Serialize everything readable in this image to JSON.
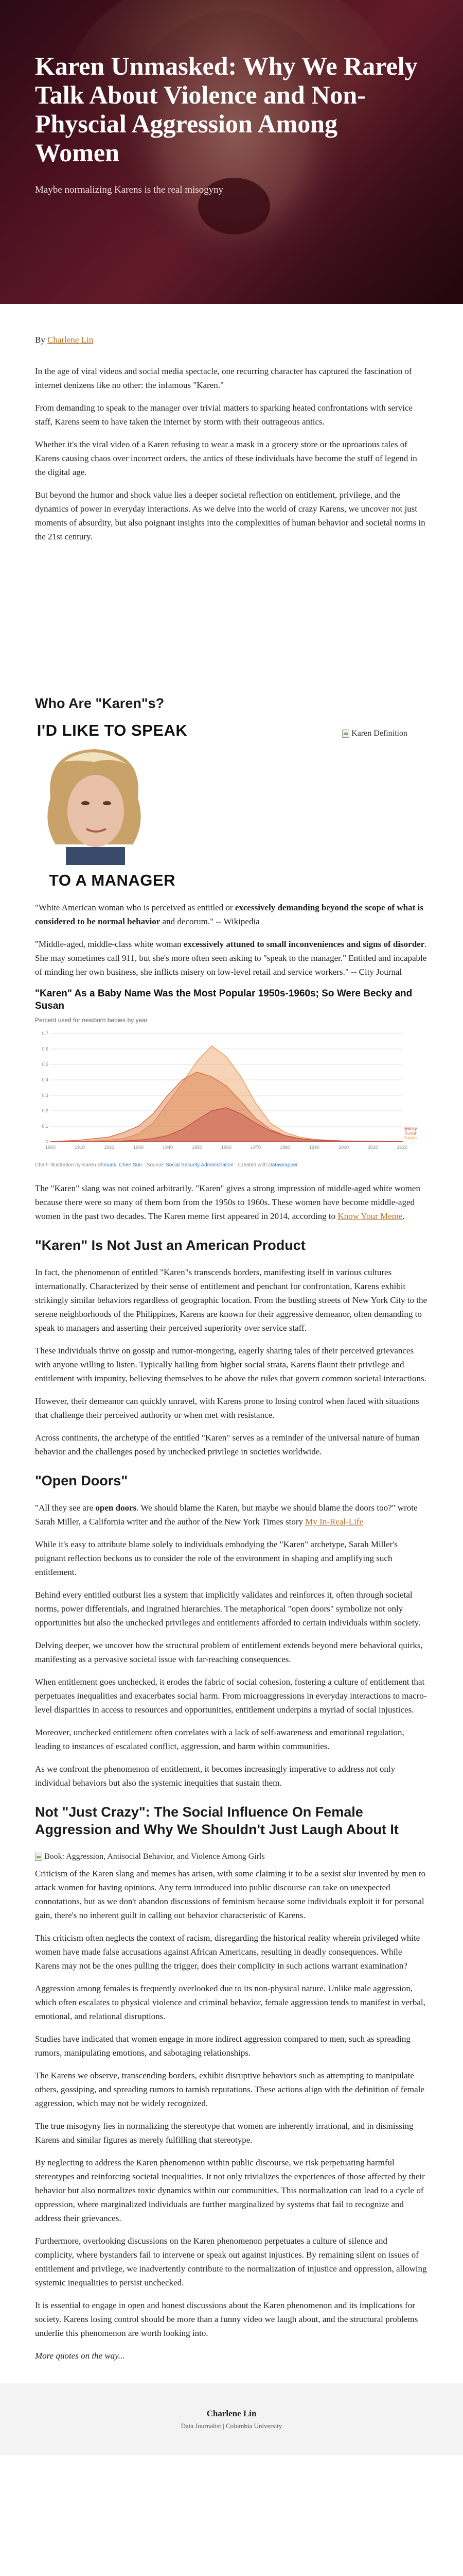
{
  "hero": {
    "title": "Karen Unmasked: Why We Rarely Talk About Violence and Non-Physcial Aggression Among Women",
    "subtitle": "Maybe normalizing Karens is the real misogyny"
  },
  "byline": {
    "prefix": "By ",
    "author": "Charlene Lin"
  },
  "intro": [
    "In the age of viral videos and social media spectacle, one recurring character has captured the fascination of internet denizens like no other: the infamous \"Karen.\"",
    "From demanding to speak to the manager over trivial matters to sparking heated confrontations with service staff, Karens seem to have taken the internet by storm with their outrageous antics.",
    "Whether it's the viral video of a Karen refusing to wear a mask in a grocery store or the uproarious tales of Karens causing chaos over incorrect orders, the antics of these individuals have become the stuff of legend in the digital age.",
    "But beyond the humor and shock value lies a deeper societal reflection on entitlement, privilege, and the dynamics of power in everyday interactions. As we delve into the world of crazy Karens, we uncover not just moments of absurdity, but also poignant insights into the complexities of human behavior and societal norms in the 21st century."
  ],
  "section1": {
    "heading": "Who Are \"Karen\"s?",
    "meme_top": "I'D LIKE TO SPEAK",
    "meme_bottom": "TO A MANAGER",
    "meme_alt": "Karen Definition",
    "quote1_a": "\"White American woman who is perceived as entitled or ",
    "quote1_b": "excessively demanding beyond the scope of what is considered to be normal behavior",
    "quote1_c": " and decorum.\" -- Wikipedia",
    "quote2_a": "\"Middle-aged, middle-class white woman ",
    "quote2_b": "excessively attuned to small inconveniences and signs of disorder",
    "quote2_c": ". She may sometimes call 911, but she's more often seen asking to \"speak to the manager.\" Entitled and incapable of minding her own business, she inflicts misery on low-level retail and service workers.\" -- City Journal",
    "after_chart_a": "The \"Karen\" slang was not coined arbitrarily. \"Karen\" gives a strong impression of middle-aged white women because there were so many of them born from the 1950s to 1960s. These women have become middle-aged women in the past two decades. The Karen meme first appeared in 2014, according to ",
    "after_chart_link": "Know Your Meme",
    "after_chart_b": "."
  },
  "chart_data": {
    "type": "area",
    "title": "\"Karen\" As a Baby Name Was the Most Popular 1950s-1960s; So Were Becky and Susan",
    "subtitle": "Percent used for newborn babies by year",
    "xlim": [
      1900,
      2020
    ],
    "ylim": [
      0,
      0.7
    ],
    "x_ticks": [
      1900,
      1910,
      1920,
      1930,
      1940,
      1950,
      1960,
      1970,
      1980,
      1990,
      2000,
      2010,
      2020
    ],
    "y_ticks": [
      0,
      0.1,
      0.2,
      0.3,
      0.4,
      0.5,
      0.6,
      0.7
    ],
    "grid": true,
    "x": [
      1900,
      1910,
      1920,
      1925,
      1930,
      1935,
      1940,
      1945,
      1950,
      1955,
      1960,
      1965,
      1970,
      1975,
      1980,
      1985,
      1990,
      2000,
      2010,
      2020
    ],
    "series": [
      {
        "name": "Karen",
        "color": "#e8a060",
        "values": [
          0,
          0,
          0.01,
          0.02,
          0.05,
          0.12,
          0.25,
          0.38,
          0.52,
          0.62,
          0.55,
          0.42,
          0.25,
          0.12,
          0.06,
          0.03,
          0.015,
          0.005,
          0.002,
          0.001
        ]
      },
      {
        "name": "Susan",
        "color": "#d9733f",
        "values": [
          0,
          0.01,
          0.03,
          0.06,
          0.1,
          0.18,
          0.3,
          0.4,
          0.45,
          0.42,
          0.36,
          0.26,
          0.15,
          0.08,
          0.04,
          0.02,
          0.01,
          0.004,
          0.002,
          0.001
        ]
      },
      {
        "name": "Becky",
        "color": "#c05050",
        "values": [
          0,
          0,
          0,
          0.005,
          0.01,
          0.02,
          0.04,
          0.08,
          0.14,
          0.2,
          0.22,
          0.18,
          0.12,
          0.07,
          0.04,
          0.02,
          0.01,
          0.004,
          0.002,
          0.001
        ]
      }
    ],
    "source_a": "Chart: Illustration by Karen ",
    "source_link1": "Shmunk, Chen Sun",
    "source_b": " · Source: ",
    "source_link2": "Social Security Administration",
    "source_c": " · Created with ",
    "source_link3": "Datawrapper",
    "colors": {
      "karen": "#e8a060",
      "susan": "#d9733f",
      "becky": "#c05050"
    }
  },
  "section2": {
    "heading": "\"Karen\" Is Not Just an American Product",
    "paragraphs": [
      "In fact, the phenomenon of entitled \"Karen\"s transcends borders, manifesting itself in various cultures internationally. Characterized by their sense of entitlement and penchant for confrontation, Karens exhibit strikingly similar behaviors regardless of geographic location. From the bustling streets of New York City to the serene neighborhoods of the Philippines, Karens are known for their aggressive demeanor, often demanding to speak to managers and asserting their perceived superiority over service staff.",
      "These individuals thrive on gossip and rumor-mongering, eagerly sharing tales of their perceived grievances with anyone willing to listen. Typically hailing from higher social strata, Karens flaunt their privilege and entitlement with impunity, believing themselves to be above the rules that govern common societal interactions.",
      "However, their demeanor can quickly unravel, with Karens prone to losing control when faced with situations that challenge their perceived authority or when met with resistance.",
      "Across continents, the archetype of the entitled \"Karen\" serves as a reminder of the universal nature of human behavior and the challenges posed by unchecked privilege in societies worldwide."
    ]
  },
  "section3": {
    "heading": "\"Open Doors\"",
    "quote_a": "\"All they see are ",
    "quote_b": "open doors",
    "quote_c": ". We should blame the Karen, but maybe we should blame the doors too?\" wrote Sarah Miller, a California writer and the author of the New York Times story ",
    "quote_link": "My In-Real-Life",
    "paragraphs": [
      "While it's easy to attribute blame solely to individuals embodying the \"Karen\" archetype, Sarah Miller's poignant reflection beckons us to consider the role of the environment in shaping and amplifying such entitlement.",
      "Behind every entitled outburst lies a system that implicitly validates and reinforces it, often through societal norms, power differentials, and ingrained hierarchies. The metaphorical \"open doors\" symbolize not only opportunities but also the unchecked privileges and entitlements afforded to certain individuals within society.",
      "Delving deeper, we uncover how the structural problem of entitlement extends beyond mere behavioral quirks, manifesting as a pervasive societal issue with far-reaching consequences.",
      "When entitlement goes unchecked, it erodes the fabric of social cohesion, fostering a culture of entitlement that perpetuates inequalities and exacerbates social harm. From microaggressions in everyday interactions to macro-level disparities in access to resources and opportunities, entitlement underpins a myriad of social injustices.",
      "Moreover, unchecked entitlement often correlates with a lack of self-awareness and emotional regulation, leading to instances of escalated conflict, aggression, and harm within communities.",
      "As we confront the phenomenon of entitlement, it becomes increasingly imperative to address not only individual behaviors but also the systemic inequities that sustain them."
    ]
  },
  "section4": {
    "heading": "Not \"Just Crazy\": The Social Influence On Female Aggression and Why We Shouldn't Just Laugh About It",
    "img_alt": "Book: Aggression, Antisocial Behavior, and Violence Among Girls",
    "paragraphs": [
      "Criticism of the Karen slang and memes has arisen, with some claiming it to be a sexist slur invented by men to attack women for having opinions. Any term introduced into public discourse can take on unexpected connotations, but as we don't abandon discussions of feminism because some individuals exploit it for personal gain, there's no inherent guilt in calling out behavior characteristic of Karens.",
      "This criticism often neglects the context of racism, disregarding the historical reality wherein privileged white women have made false accusations against African Americans, resulting in deadly consequences. While Karens may not be the ones pulling the trigger, does their complicity in such actions warrant examination?",
      "Aggression among females is frequently overlooked due to its non-physical nature. Unlike male aggression, which often escalates to physical violence and criminal behavior, female aggression tends to manifest in verbal, emotional, and relational disruptions.",
      "Studies have indicated that women engage in more indirect aggression compared to men, such as spreading rumors, manipulating emotions, and sabotaging relationships.",
      "The Karens we observe, transcending borders, exhibit disruptive behaviors such as attempting to manipulate others, gossiping, and spreading rumors to tarnish reputations. These actions align with the definition of female aggression, which may not be widely recognized.",
      "The true misogyny lies in normalizing the stereotype that women are inherently irrational, and in dismissing Karens and similar figures as merely fulfilling that stereotype.",
      "By neglecting to address the Karen phenomenon within public discourse, we risk perpetuating harmful stereotypes and reinforcing societal inequalities. It not only trivializes the experiences of those affected by their behavior but also normalizes toxic dynamics within our communities. This normalization can lead to a cycle of oppression, where marginalized individuals are further marginalized by systems that fail to recognize and address their grievances.",
      "Furthermore, overlooking discussions on the Karen phenomenon perpetuates a culture of silence and complicity, where bystanders fail to intervene or speak out against injustices. By remaining silent on issues of entitlement and privilege, we inadvertently contribute to the normalization of injustice and oppression, allowing systemic inequalities to persist unchecked.",
      "It is essential to engage in open and honest discussions about the Karen phenomenon and its implications for society. Karens losing control should be more than a funny video we laugh about, and the structural problems underlie this phenomenon are worth looking into."
    ],
    "more": "More quotes on the way..."
  },
  "footer": {
    "name": "Charlene Lin",
    "role": "Data Journalist | Columbia University"
  }
}
